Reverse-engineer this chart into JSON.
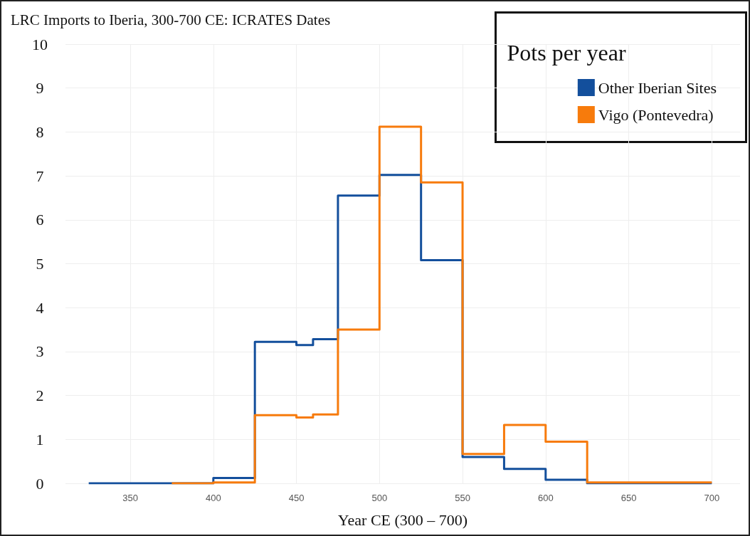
{
  "chart_data": {
    "type": "step",
    "title": "LRC Imports to Iberia, 300-700 CE: ICRATES Dates",
    "xlabel": "Year CE (300 – 700)",
    "legend_title": "Pots per year",
    "series": [
      {
        "name": "Other Iberian Sites",
        "color": "#134f9c",
        "x": [
          325,
          400,
          425,
          450,
          460,
          475,
          500,
          525,
          550,
          575,
          600,
          625,
          700
        ],
        "values": [
          0,
          0.12,
          3.22,
          3.15,
          3.28,
          6.55,
          7.02,
          5.08,
          0.6,
          0.33,
          0.08,
          0,
          0
        ]
      },
      {
        "name": "Vigo (Pontevedra)",
        "color": "#f77b0c",
        "x": [
          375,
          400,
          425,
          450,
          460,
          475,
          500,
          525,
          550,
          575,
          600,
          625,
          700
        ],
        "values": [
          0,
          0.02,
          1.55,
          1.5,
          1.57,
          3.5,
          8.12,
          6.85,
          0.67,
          1.33,
          0.95,
          0.02,
          0.02
        ]
      }
    ],
    "xlim": [
      311,
      717
    ],
    "xticks": [
      350,
      400,
      450,
      500,
      550,
      600,
      650,
      700
    ],
    "ylim": [
      0,
      10
    ],
    "yticks": [
      0,
      1,
      2,
      3,
      4,
      5,
      6,
      7,
      8,
      9,
      10
    ],
    "grid": true,
    "legend": "top right",
    "marker": "none",
    "line_style": "solid"
  }
}
